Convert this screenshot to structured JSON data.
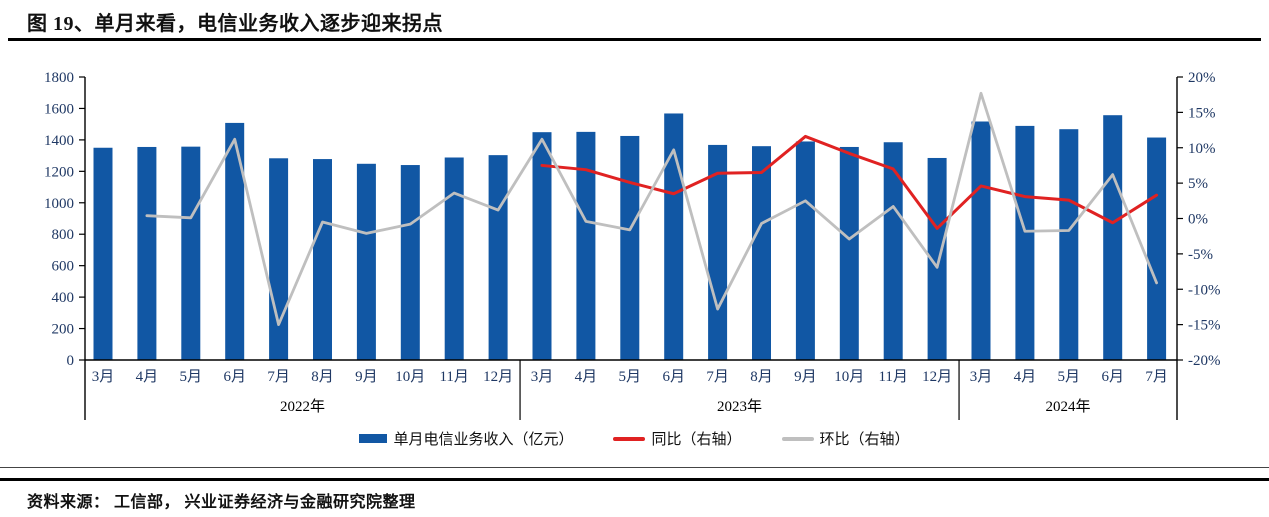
{
  "figure": {
    "title": "图 19、单月来看，电信业务收入逐步迎来拐点",
    "source": "资料来源： 工信部， 兴业证券经济与金融研究院整理"
  },
  "colors": {
    "bar_blue": "#1157A4",
    "yoy_red": "#E02222",
    "mom_gray": "#BFBFBF",
    "axis_text_navy": "#1F3864",
    "axis_line_black": "#000000"
  },
  "chart_data": {
    "type": "bar",
    "subtype": "bar+line combo, dual axis",
    "categories": [
      "3月",
      "4月",
      "5月",
      "6月",
      "7月",
      "8月",
      "9月",
      "10月",
      "11月",
      "12月",
      "3月",
      "4月",
      "5月",
      "6月",
      "7月",
      "8月",
      "9月",
      "10月",
      "11月",
      "12月",
      "3月",
      "4月",
      "5月",
      "6月",
      "7月"
    ],
    "groups": [
      {
        "label": "2022年",
        "start": 0,
        "count": 10
      },
      {
        "label": "2023年",
        "start": 10,
        "count": 10
      },
      {
        "label": "2024年",
        "start": 20,
        "count": 5
      }
    ],
    "series": [
      {
        "name": "单月电信业务收入（亿元）",
        "type": "bar",
        "axis": "left",
        "color": "#1157A4",
        "values": [
          1350,
          1355,
          1357,
          1508,
          1283,
          1278,
          1248,
          1240,
          1288,
          1303,
          1449,
          1451,
          1425,
          1568,
          1368,
          1360,
          1390,
          1355,
          1385,
          1285,
          1517,
          1489,
          1468,
          1557,
          1415
        ]
      },
      {
        "name": "同比（右轴）",
        "type": "line",
        "axis": "right",
        "color": "#E02222",
        "values": [
          null,
          null,
          null,
          null,
          null,
          null,
          null,
          null,
          null,
          null,
          7.5,
          6.9,
          5.1,
          3.5,
          6.4,
          6.5,
          11.6,
          9.2,
          7.0,
          -1.4,
          4.6,
          3.1,
          2.6,
          -0.6,
          3.3
        ]
      },
      {
        "name": "环比（右轴）",
        "type": "line",
        "axis": "right",
        "color": "#BFBFBF",
        "values": [
          null,
          0.4,
          0.1,
          11.2,
          -15.0,
          -0.5,
          -2.1,
          -0.8,
          3.6,
          1.2,
          11.2,
          -0.4,
          -1.6,
          9.7,
          -12.8,
          -0.7,
          2.5,
          -2.9,
          1.7,
          -6.9,
          17.7,
          -1.8,
          -1.7,
          6.2,
          -9.1
        ]
      }
    ],
    "left_axis": {
      "min": 0,
      "max": 1800,
      "step": 200,
      "tick_labels": [
        "0",
        "200",
        "400",
        "600",
        "800",
        "1000",
        "1200",
        "1400",
        "1600",
        "1800"
      ]
    },
    "right_axis": {
      "min": -20,
      "max": 20,
      "step": 5,
      "suffix": "%",
      "tick_labels": [
        "-20%",
        "-15%",
        "-10%",
        "-5%",
        "0%",
        "5%",
        "10%",
        "15%",
        "20%"
      ]
    },
    "grid": false,
    "legend_position": "bottom"
  }
}
